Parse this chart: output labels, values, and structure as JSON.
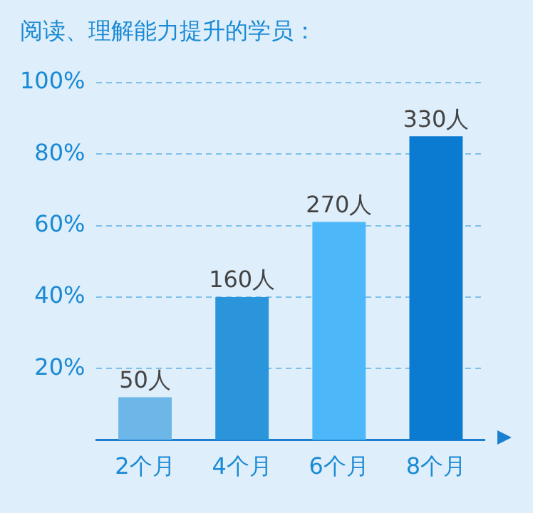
{
  "chart_data": {
    "type": "bar",
    "title": "阅读、理解能力提升的学员：",
    "categories": [
      "2个月",
      "4个月",
      "6个月",
      "8个月"
    ],
    "values": [
      12,
      40,
      61,
      85
    ],
    "colors": [
      "#6cb6e8",
      "#2b95dc",
      "#4cb8fa",
      "#0a7bd0"
    ],
    "annotations": [
      {
        "text": "50人",
        "x": "2个月",
        "y": 12
      },
      {
        "text": "160人",
        "x": "4个月",
        "y": 40
      },
      {
        "text": "270人",
        "x": "6个月",
        "y": 61
      },
      {
        "text": "330人",
        "x": "8个月",
        "y": 85
      }
    ],
    "ylim": [
      0,
      100
    ],
    "yticks": [
      {
        "value": 20,
        "label": "20%"
      },
      {
        "value": 40,
        "label": "40%"
      },
      {
        "value": 60,
        "label": "60%"
      },
      {
        "value": 80,
        "label": "80%"
      },
      {
        "value": 100,
        "label": "100%"
      }
    ],
    "grid": "y"
  }
}
